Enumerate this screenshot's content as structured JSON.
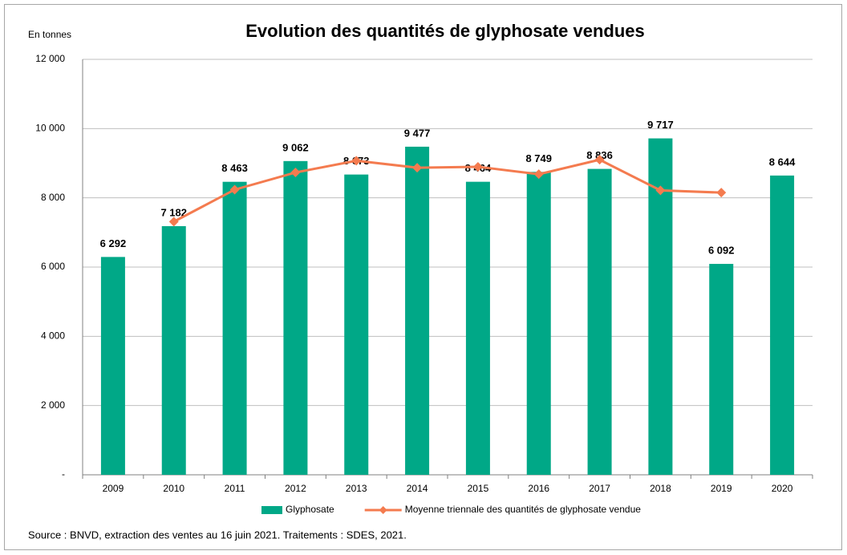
{
  "chart_data": {
    "type": "bar",
    "title": "Evolution des quantités de glyphosate vendues",
    "y_label": "En tonnes",
    "source": "Source : BNVD, extraction des ventes au 16 juin 2021. Traitements : SDES, 2021.",
    "categories": [
      "2009",
      "2010",
      "2011",
      "2012",
      "2013",
      "2014",
      "2015",
      "2016",
      "2017",
      "2018",
      "2019",
      "2020"
    ],
    "series": [
      {
        "name": "Glyphosate",
        "type": "bar",
        "color": "#00a887",
        "values": [
          6292,
          7182,
          8463,
          9062,
          8673,
          9477,
          8464,
          8749,
          8836,
          9717,
          6092,
          8644
        ],
        "value_labels": [
          "6 292",
          "7 182",
          "8 463",
          "9 062",
          "8 673",
          "9 477",
          "8 464",
          "8 749",
          "8 836",
          "9 717",
          "6 092",
          "8 644"
        ],
        "label_color": "#f47b4f"
      },
      {
        "name": "Moyenne triennale des quantités de glyphosate vendue",
        "type": "line",
        "color": "#f47b4f",
        "values": [
          null,
          7312,
          8236,
          8733,
          9071,
          8871,
          8897,
          8683,
          9101,
          8215,
          8151,
          null
        ]
      }
    ],
    "ylim": [
      0,
      12000
    ],
    "yticks": [
      {
        "value": 0,
        "label": "-"
      },
      {
        "value": 2000,
        "label": "2 000"
      },
      {
        "value": 4000,
        "label": "4 000"
      },
      {
        "value": 6000,
        "label": "6 000"
      },
      {
        "value": 8000,
        "label": "8 000"
      },
      {
        "value": 10000,
        "label": "10 000"
      },
      {
        "value": 12000,
        "label": "12 000"
      }
    ],
    "grid": true,
    "legend": "bottom"
  }
}
